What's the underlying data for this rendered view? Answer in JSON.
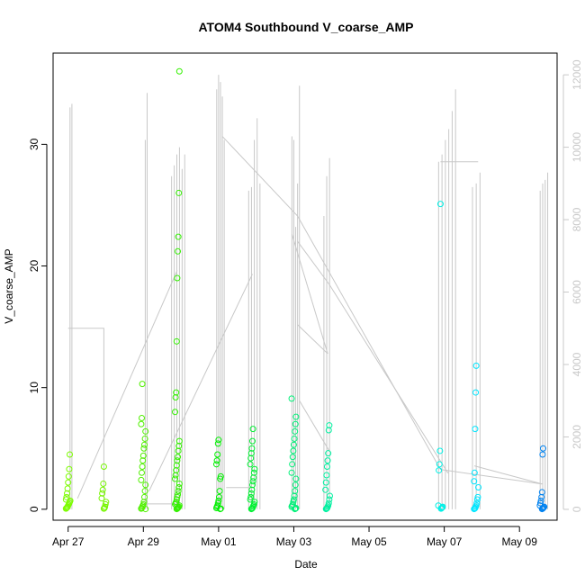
{
  "chart_data": {
    "type": "scatter",
    "title": "ATOM4 Southbound V_coarse_AMP",
    "xlabel": "Date",
    "ylabel": "V_coarse_AMP",
    "x_ticks": [
      "Apr 27",
      "Apr 29",
      "May 01",
      "May 03",
      "May 05",
      "May 07",
      "May 09"
    ],
    "xlim_days": [
      -0.4,
      13.0
    ],
    "x_tick_days": [
      0,
      2,
      4,
      6,
      8,
      10,
      12
    ],
    "ylim": [
      -0.9,
      37.5
    ],
    "y_ticks": [
      0,
      10,
      20,
      30
    ],
    "y2lim": [
      -300,
      12600
    ],
    "y2_ticks": [
      0,
      2000,
      4000,
      6000,
      8000,
      10000,
      12000
    ],
    "line_color": "#c8c8c8",
    "point_clusters": [
      {
        "day": 0.0,
        "color": "#7cfc00",
        "y": [
          0.05,
          0.1,
          0.15,
          0.2,
          0.3,
          0.4,
          0.5,
          0.6,
          0.7,
          0.8,
          1.0,
          1.3,
          1.7,
          2.2,
          2.7,
          3.3,
          4.5
        ]
      },
      {
        "day": 0.95,
        "color": "#76f500",
        "y": [
          0.05,
          0.1,
          0.2,
          0.4,
          0.6,
          0.9,
          1.3,
          1.6,
          2.1,
          3.5
        ]
      },
      {
        "day": 2.0,
        "color": "#50f000",
        "y": [
          0.02,
          0.05,
          0.1,
          0.2,
          0.3,
          0.4,
          0.6,
          1.0,
          1.5,
          2.0,
          2.4,
          3.0,
          3.5,
          4.0,
          4.4,
          5.0,
          5.3,
          5.8,
          6.4,
          7.0,
          7.5,
          10.3
        ]
      },
      {
        "day": 2.9,
        "color": "#33f000",
        "y": [
          0.02,
          0.05,
          0.1,
          0.15,
          0.2,
          0.3,
          0.4,
          0.5,
          0.6,
          0.8,
          1.0,
          1.2,
          1.5,
          1.8,
          2.1,
          2.5,
          2.8,
          3.2,
          3.6,
          4.0,
          4.3,
          4.8,
          5.2,
          5.6,
          8.0,
          9.2,
          9.6,
          13.8,
          19.0,
          21.2,
          22.4,
          26.0,
          36.0
        ]
      },
      {
        "day": 4.0,
        "color": "#00f000",
        "y": [
          0.02,
          0.05,
          0.1,
          0.2,
          0.3,
          0.5,
          0.7,
          1.0,
          1.5,
          2.5,
          2.7,
          3.7,
          4.0,
          4.5,
          5.4,
          5.7
        ]
      },
      {
        "day": 4.9,
        "color": "#00f032",
        "y": [
          0.02,
          0.05,
          0.1,
          0.2,
          0.3,
          0.4,
          0.6,
          0.8,
          1.0,
          1.3,
          1.6,
          2.0,
          2.3,
          2.6,
          3.0,
          3.3,
          3.7,
          4.2,
          4.6,
          5.0,
          5.6,
          6.6
        ]
      },
      {
        "day": 6.0,
        "color": "#00f078",
        "y": [
          0.02,
          0.05,
          0.1,
          0.2,
          0.3,
          0.4,
          0.6,
          0.8,
          1.1,
          1.5,
          2.0,
          2.5,
          3.0,
          3.7,
          4.3,
          4.8,
          5.3,
          5.8,
          6.4,
          7.0,
          7.6,
          9.1
        ]
      },
      {
        "day": 6.9,
        "color": "#00f0a0",
        "y": [
          0.02,
          0.05,
          0.1,
          0.2,
          0.3,
          0.5,
          0.8,
          1.1,
          1.6,
          2.2,
          2.8,
          3.5,
          4.0,
          4.6,
          6.5,
          6.9
        ]
      },
      {
        "day": 9.9,
        "color": "#00f0e6",
        "y": [
          0.05,
          0.1,
          0.15,
          0.2,
          0.3,
          3.2,
          3.7,
          4.8,
          25.1
        ]
      },
      {
        "day": 10.85,
        "color": "#00e6ff",
        "y": [
          0.02,
          0.05,
          0.1,
          0.2,
          0.3,
          0.5,
          0.8,
          1.0,
          1.8,
          2.3,
          3.0,
          6.6,
          9.6,
          11.8
        ]
      },
      {
        "day": 12.6,
        "color": "#0082f0",
        "y": [
          0.02,
          0.05,
          0.1,
          0.15,
          0.2,
          0.3,
          0.5,
          0.7,
          1.0,
          1.4,
          4.5,
          5.0
        ]
      }
    ],
    "spike_groups": [
      {
        "x0": 0.05,
        "x1": 0.1,
        "tops": [
          11100,
          11200
        ]
      },
      {
        "x0": 2.05,
        "x1": 2.1,
        "tops": [
          10200,
          11500
        ]
      },
      {
        "x0": 2.75,
        "x1": 3.1,
        "tops": [
          9200,
          9500,
          9800,
          10000,
          9400,
          9800
        ]
      },
      {
        "x0": 3.95,
        "x1": 4.15,
        "tops": [
          11600,
          12000,
          11800,
          11400,
          10200
        ]
      },
      {
        "x0": 4.8,
        "x1": 5.1,
        "tops": [
          8800,
          8900,
          10200,
          10800,
          9000
        ]
      },
      {
        "x0": 5.95,
        "x1": 6.15,
        "tops": [
          10300,
          10200,
          7800,
          9000,
          11700
        ]
      },
      {
        "x0": 6.8,
        "x1": 6.95,
        "tops": [
          8100,
          9200,
          9700
        ]
      },
      {
        "x0": 9.85,
        "x1": 10.3,
        "tops": [
          9600,
          9800,
          10200,
          10500,
          11000,
          11600
        ]
      },
      {
        "x0": 10.75,
        "x1": 10.95,
        "tops": [
          8900,
          9000,
          9300
        ]
      },
      {
        "x0": 12.55,
        "x1": 12.75,
        "tops": [
          8800,
          9000,
          9100,
          9300
        ]
      }
    ],
    "connector_lines": [
      [
        [
          0.0,
          5000
        ],
        [
          0.95,
          5000
        ],
        [
          0.95,
          300
        ]
      ],
      [
        [
          0.25,
          300
        ],
        [
          2.9,
          6600
        ]
      ],
      [
        [
          2.1,
          150
        ],
        [
          2.9,
          150
        ]
      ],
      [
        [
          2.15,
          500
        ],
        [
          4.9,
          6500
        ]
      ],
      [
        [
          4.1,
          10300
        ],
        [
          6.1,
          8100
        ],
        [
          9.9,
          1100
        ],
        [
          12.6,
          700
        ]
      ],
      [
        [
          4.2,
          600
        ],
        [
          4.9,
          600
        ]
      ],
      [
        [
          5.95,
          7600
        ],
        [
          6.9,
          4300
        ]
      ],
      [
        [
          6.1,
          5100
        ],
        [
          6.9,
          4300
        ]
      ],
      [
        [
          6.1,
          7400
        ],
        [
          6.95,
          6200
        ],
        [
          10.1,
          1000
        ]
      ],
      [
        [
          6.15,
          3000
        ],
        [
          6.95,
          1600
        ]
      ],
      [
        [
          9.9,
          9600
        ],
        [
          10.9,
          9600
        ]
      ],
      [
        [
          10.8,
          1200
        ],
        [
          12.6,
          700
        ]
      ]
    ]
  }
}
